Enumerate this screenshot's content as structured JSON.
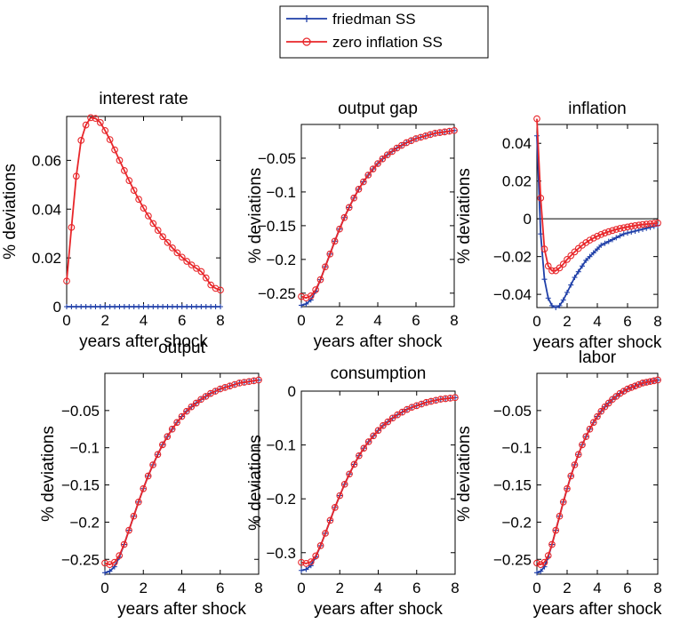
{
  "legend": [
    {
      "label": "friedman SS",
      "color": "#1f3fa8",
      "marker": "plus"
    },
    {
      "label": "zero inflation SS",
      "color": "#e8262a",
      "marker": "circle"
    }
  ],
  "chart_data": [
    {
      "type": "line",
      "title": "interest rate",
      "xlabel": "years after shock",
      "ylabel": "% deviations",
      "xlim": [
        0,
        8
      ],
      "ylim": [
        0,
        0.078
      ],
      "xticks": [
        "0",
        "2",
        "4",
        "6",
        "8"
      ],
      "yticks": [
        "0",
        "0.02",
        "0.04",
        "0.06"
      ],
      "grid": false,
      "zero_line": false,
      "series": [
        {
          "name": "friedman SS",
          "x": [
            0,
            0.25,
            0.5,
            0.75,
            1,
            1.25,
            1.5,
            1.75,
            2,
            2.25,
            2.5,
            2.75,
            3,
            3.25,
            3.5,
            3.75,
            4,
            4.25,
            4.5,
            4.75,
            5,
            5.25,
            5.5,
            5.75,
            6,
            6.25,
            6.5,
            6.75,
            7,
            7.25,
            7.5,
            7.75,
            8
          ],
          "y": [
            0,
            0,
            0,
            0,
            0,
            0,
            0,
            0,
            0,
            0,
            0,
            0,
            0,
            0,
            0,
            0,
            0,
            0,
            0,
            0,
            0,
            0,
            0,
            0,
            0,
            0,
            0,
            0,
            0,
            0,
            0,
            0,
            0
          ]
        },
        {
          "name": "zero inflation SS",
          "x": [
            0,
            0.25,
            0.5,
            0.75,
            1,
            1.25,
            1.5,
            1.75,
            2,
            2.25,
            2.5,
            2.75,
            3,
            3.25,
            3.5,
            3.75,
            4,
            4.25,
            4.5,
            4.75,
            5,
            5.25,
            5.5,
            5.75,
            6,
            6.25,
            6.5,
            6.75,
            7,
            7.25,
            7.5,
            7.75,
            8
          ],
          "y": [
            0.0105,
            0.0325,
            0.0535,
            0.0682,
            0.0745,
            0.0775,
            0.0772,
            0.0755,
            0.0722,
            0.0685,
            0.0643,
            0.06,
            0.0558,
            0.0517,
            0.0477,
            0.044,
            0.0404,
            0.0372,
            0.0341,
            0.0313,
            0.0287,
            0.0263,
            0.0241,
            0.0221,
            0.0203,
            0.0186,
            0.0171,
            0.0157,
            0.0144,
            0.0118,
            0.0089,
            0.0075,
            0.0068
          ]
        }
      ]
    },
    {
      "type": "line",
      "title": "output gap",
      "xlabel": "years after shock",
      "ylabel": "% deviations",
      "xlim": [
        0,
        8
      ],
      "ylim": [
        -0.27,
        0
      ],
      "xticks": [
        "0",
        "2",
        "4",
        "6",
        "8"
      ],
      "yticks": [
        "-0.25",
        "-0.2",
        "-0.15",
        "-0.1",
        "-0.05"
      ],
      "grid": false,
      "zero_line": false,
      "series": [
        {
          "name": "friedman SS",
          "x": [
            0,
            0.25,
            0.5,
            0.75,
            1,
            1.25,
            1.5,
            1.75,
            2,
            2.25,
            2.5,
            2.75,
            3,
            3.25,
            3.5,
            3.75,
            4,
            4.25,
            4.5,
            4.75,
            5,
            5.25,
            5.5,
            5.75,
            6,
            6.25,
            6.5,
            6.75,
            7,
            7.25,
            7.5,
            7.75,
            8
          ],
          "y": [
            -0.268,
            -0.266,
            -0.26,
            -0.247,
            -0.23,
            -0.211,
            -0.192,
            -0.173,
            -0.155,
            -0.138,
            -0.123,
            -0.109,
            -0.096,
            -0.085,
            -0.075,
            -0.066,
            -0.058,
            -0.051,
            -0.045,
            -0.04,
            -0.035,
            -0.031,
            -0.027,
            -0.024,
            -0.021,
            -0.019,
            -0.017,
            -0.015,
            -0.013,
            -0.012,
            -0.011,
            -0.01,
            -0.009
          ]
        },
        {
          "name": "zero inflation SS",
          "x": [
            0,
            0.25,
            0.5,
            0.75,
            1,
            1.25,
            1.5,
            1.75,
            2,
            2.25,
            2.5,
            2.75,
            3,
            3.25,
            3.5,
            3.75,
            4,
            4.25,
            4.5,
            4.75,
            5,
            5.25,
            5.5,
            5.75,
            6,
            6.25,
            6.5,
            6.75,
            7,
            7.25,
            7.5,
            7.75,
            8
          ],
          "y": [
            -0.255,
            -0.257,
            -0.254,
            -0.245,
            -0.23,
            -0.211,
            -0.192,
            -0.173,
            -0.155,
            -0.138,
            -0.123,
            -0.109,
            -0.096,
            -0.085,
            -0.075,
            -0.066,
            -0.058,
            -0.051,
            -0.045,
            -0.04,
            -0.035,
            -0.031,
            -0.027,
            -0.024,
            -0.021,
            -0.019,
            -0.017,
            -0.015,
            -0.013,
            -0.012,
            -0.011,
            -0.01,
            -0.009
          ]
        }
      ]
    },
    {
      "type": "line",
      "title": "inflation",
      "xlabel": "years after shock",
      "ylabel": "% deviations",
      "xlim": [
        0,
        8
      ],
      "ylim": [
        -0.047,
        0.05
      ],
      "xticks": [
        "0",
        "2",
        "4",
        "6",
        "8"
      ],
      "yticks": [
        "-0.04",
        "-0.02",
        "0",
        "0.02",
        "0.04"
      ],
      "grid": false,
      "zero_line": true,
      "series": [
        {
          "name": "friedman SS",
          "x": [
            0,
            0.25,
            0.5,
            0.75,
            1,
            1.25,
            1.5,
            1.75,
            2,
            2.25,
            2.5,
            2.75,
            3,
            3.25,
            3.5,
            3.75,
            4,
            4.25,
            4.5,
            4.75,
            5,
            5.25,
            5.5,
            5.75,
            6,
            6.25,
            6.5,
            6.75,
            7,
            7.25,
            7.5,
            7.75,
            8
          ],
          "y": [
            0.044,
            -0.008,
            -0.032,
            -0.042,
            -0.046,
            -0.047,
            -0.046,
            -0.043,
            -0.039,
            -0.035,
            -0.031,
            -0.028,
            -0.025,
            -0.022,
            -0.02,
            -0.018,
            -0.016,
            -0.014,
            -0.013,
            -0.012,
            -0.011,
            -0.01,
            -0.009,
            -0.008,
            -0.0075,
            -0.007,
            -0.0065,
            -0.006,
            -0.0055,
            -0.005,
            -0.0045,
            -0.004,
            -0.0035
          ]
        },
        {
          "name": "zero inflation SS",
          "x": [
            0,
            0.25,
            0.5,
            0.75,
            1,
            1.25,
            1.5,
            1.75,
            2,
            2.25,
            2.5,
            2.75,
            3,
            3.25,
            3.5,
            3.75,
            4,
            4.25,
            4.5,
            4.75,
            5,
            5.25,
            5.5,
            5.75,
            6,
            6.25,
            6.5,
            6.75,
            7,
            7.25,
            7.5,
            7.75,
            8
          ],
          "y": [
            0.053,
            0.011,
            -0.016,
            -0.025,
            -0.0275,
            -0.0275,
            -0.026,
            -0.024,
            -0.0215,
            -0.0195,
            -0.0175,
            -0.0157,
            -0.014,
            -0.0126,
            -0.0113,
            -0.0102,
            -0.0092,
            -0.0083,
            -0.0075,
            -0.0068,
            -0.0062,
            -0.0056,
            -0.0051,
            -0.0047,
            -0.0043,
            -0.0039,
            -0.0036,
            -0.0033,
            -0.003,
            -0.0028,
            -0.0026,
            -0.0024,
            -0.0022
          ]
        }
      ]
    },
    {
      "type": "line",
      "title": "output",
      "xlabel": "years after shock",
      "ylabel": "% deviations",
      "xlim": [
        0,
        8
      ],
      "ylim": [
        -0.27,
        0
      ],
      "xticks": [
        "0",
        "2",
        "4",
        "6",
        "8"
      ],
      "yticks": [
        "-0.25",
        "-0.2",
        "-0.15",
        "-0.1",
        "-0.05"
      ],
      "grid": false,
      "zero_line": false,
      "series": [
        {
          "name": "friedman SS",
          "x": [
            0,
            0.25,
            0.5,
            0.75,
            1,
            1.25,
            1.5,
            1.75,
            2,
            2.25,
            2.5,
            2.75,
            3,
            3.25,
            3.5,
            3.75,
            4,
            4.25,
            4.5,
            4.75,
            5,
            5.25,
            5.5,
            5.75,
            6,
            6.25,
            6.5,
            6.75,
            7,
            7.25,
            7.5,
            7.75,
            8
          ],
          "y": [
            -0.268,
            -0.266,
            -0.26,
            -0.247,
            -0.23,
            -0.211,
            -0.192,
            -0.173,
            -0.155,
            -0.138,
            -0.123,
            -0.109,
            -0.096,
            -0.085,
            -0.075,
            -0.066,
            -0.058,
            -0.051,
            -0.045,
            -0.04,
            -0.035,
            -0.031,
            -0.027,
            -0.024,
            -0.021,
            -0.019,
            -0.017,
            -0.015,
            -0.013,
            -0.012,
            -0.011,
            -0.01,
            -0.009
          ]
        },
        {
          "name": "zero inflation SS",
          "x": [
            0,
            0.25,
            0.5,
            0.75,
            1,
            1.25,
            1.5,
            1.75,
            2,
            2.25,
            2.5,
            2.75,
            3,
            3.25,
            3.5,
            3.75,
            4,
            4.25,
            4.5,
            4.75,
            5,
            5.25,
            5.5,
            5.75,
            6,
            6.25,
            6.5,
            6.75,
            7,
            7.25,
            7.5,
            7.75,
            8
          ],
          "y": [
            -0.255,
            -0.257,
            -0.254,
            -0.245,
            -0.23,
            -0.211,
            -0.192,
            -0.173,
            -0.155,
            -0.138,
            -0.123,
            -0.109,
            -0.096,
            -0.085,
            -0.075,
            -0.066,
            -0.058,
            -0.051,
            -0.045,
            -0.04,
            -0.035,
            -0.031,
            -0.027,
            -0.024,
            -0.021,
            -0.019,
            -0.017,
            -0.015,
            -0.013,
            -0.012,
            -0.011,
            -0.01,
            -0.009
          ]
        }
      ]
    },
    {
      "type": "line",
      "title": "consumption",
      "xlabel": "years after shock",
      "ylabel": "% deviations",
      "xlim": [
        0,
        8
      ],
      "ylim": [
        -0.34,
        0
      ],
      "xticks": [
        "0",
        "2",
        "4",
        "6",
        "8"
      ],
      "yticks": [
        "-0.3",
        "-0.2",
        "-0.1",
        "0"
      ],
      "grid": false,
      "zero_line": false,
      "series": [
        {
          "name": "friedman SS",
          "x": [
            0,
            0.25,
            0.5,
            0.75,
            1,
            1.25,
            1.5,
            1.75,
            2,
            2.25,
            2.5,
            2.75,
            3,
            3.25,
            3.5,
            3.75,
            4,
            4.25,
            4.5,
            4.75,
            5,
            5.25,
            5.5,
            5.75,
            6,
            6.25,
            6.5,
            6.75,
            7,
            7.25,
            7.5,
            7.75,
            8
          ],
          "y": [
            -0.333,
            -0.331,
            -0.324,
            -0.308,
            -0.287,
            -0.264,
            -0.24,
            -0.216,
            -0.194,
            -0.173,
            -0.154,
            -0.136,
            -0.12,
            -0.106,
            -0.094,
            -0.083,
            -0.073,
            -0.064,
            -0.057,
            -0.05,
            -0.044,
            -0.039,
            -0.034,
            -0.03,
            -0.027,
            -0.024,
            -0.021,
            -0.019,
            -0.017,
            -0.015,
            -0.014,
            -0.013,
            -0.012
          ]
        },
        {
          "name": "zero inflation SS",
          "x": [
            0,
            0.25,
            0.5,
            0.75,
            1,
            1.25,
            1.5,
            1.75,
            2,
            2.25,
            2.5,
            2.75,
            3,
            3.25,
            3.5,
            3.75,
            4,
            4.25,
            4.5,
            4.75,
            5,
            5.25,
            5.5,
            5.75,
            6,
            6.25,
            6.5,
            6.75,
            7,
            7.25,
            7.5,
            7.75,
            8
          ],
          "y": [
            -0.318,
            -0.32,
            -0.317,
            -0.306,
            -0.287,
            -0.264,
            -0.24,
            -0.216,
            -0.194,
            -0.173,
            -0.154,
            -0.136,
            -0.12,
            -0.106,
            -0.094,
            -0.083,
            -0.073,
            -0.064,
            -0.057,
            -0.05,
            -0.044,
            -0.039,
            -0.034,
            -0.03,
            -0.027,
            -0.024,
            -0.021,
            -0.019,
            -0.017,
            -0.015,
            -0.014,
            -0.013,
            -0.012
          ]
        }
      ]
    },
    {
      "type": "line",
      "title": "labor",
      "xlabel": "years after shock",
      "ylabel": "% deviations",
      "xlim": [
        0,
        8
      ],
      "ylim": [
        -0.27,
        0
      ],
      "xticks": [
        "0",
        "2",
        "4",
        "6",
        "8"
      ],
      "yticks": [
        "-0.25",
        "-0.2",
        "-0.15",
        "-0.1",
        "-0.05"
      ],
      "grid": false,
      "zero_line": false,
      "series": [
        {
          "name": "friedman SS",
          "x": [
            0,
            0.25,
            0.5,
            0.75,
            1,
            1.25,
            1.5,
            1.75,
            2,
            2.25,
            2.5,
            2.75,
            3,
            3.25,
            3.5,
            3.75,
            4,
            4.25,
            4.5,
            4.75,
            5,
            5.25,
            5.5,
            5.75,
            6,
            6.25,
            6.5,
            6.75,
            7,
            7.25,
            7.5,
            7.75,
            8
          ],
          "y": [
            -0.268,
            -0.266,
            -0.26,
            -0.247,
            -0.23,
            -0.211,
            -0.192,
            -0.173,
            -0.155,
            -0.138,
            -0.123,
            -0.109,
            -0.096,
            -0.085,
            -0.075,
            -0.066,
            -0.058,
            -0.051,
            -0.045,
            -0.04,
            -0.035,
            -0.031,
            -0.027,
            -0.024,
            -0.021,
            -0.019,
            -0.017,
            -0.015,
            -0.013,
            -0.012,
            -0.011,
            -0.01,
            -0.009
          ]
        },
        {
          "name": "zero inflation SS",
          "x": [
            0,
            0.25,
            0.5,
            0.75,
            1,
            1.25,
            1.5,
            1.75,
            2,
            2.25,
            2.5,
            2.75,
            3,
            3.25,
            3.5,
            3.75,
            4,
            4.25,
            4.5,
            4.75,
            5,
            5.25,
            5.5,
            5.75,
            6,
            6.25,
            6.5,
            6.75,
            7,
            7.25,
            7.5,
            7.75,
            8
          ],
          "y": [
            -0.255,
            -0.257,
            -0.254,
            -0.245,
            -0.23,
            -0.211,
            -0.192,
            -0.173,
            -0.155,
            -0.138,
            -0.123,
            -0.109,
            -0.096,
            -0.085,
            -0.075,
            -0.066,
            -0.058,
            -0.051,
            -0.045,
            -0.04,
            -0.035,
            -0.031,
            -0.027,
            -0.024,
            -0.021,
            -0.019,
            -0.017,
            -0.015,
            -0.013,
            -0.012,
            -0.011,
            -0.01,
            -0.009
          ]
        }
      ]
    }
  ]
}
